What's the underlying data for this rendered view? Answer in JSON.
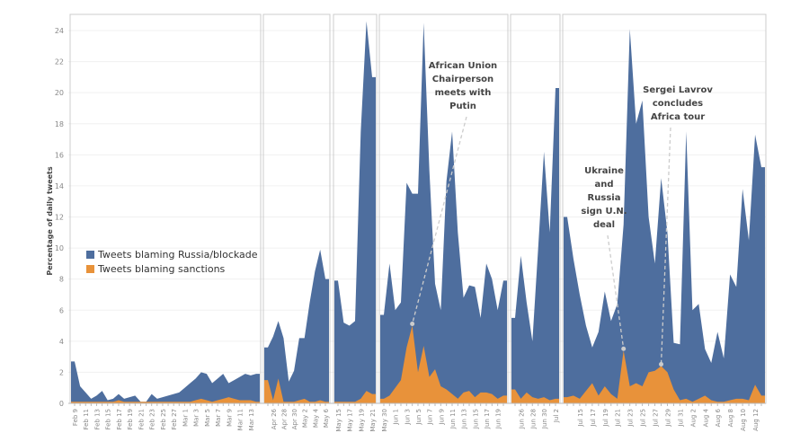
{
  "chart_data": {
    "type": "area",
    "ylabel": "Percentage of daily tweets",
    "ylim": [
      0,
      25
    ],
    "yticks": [
      0,
      2,
      4,
      6,
      8,
      10,
      12,
      14,
      16,
      18,
      20,
      22,
      24
    ],
    "grid": true,
    "legend_position": "left-middle",
    "series_meta": [
      {
        "name": "Tweets blaming Russia/blockade",
        "color": "#4e6e9e"
      },
      {
        "name": "Tweets blaming sanctions",
        "color": "#e8923a"
      }
    ],
    "panels": [
      {
        "dates": [
          "Feb 9",
          "Feb 10",
          "Feb 11",
          "Feb 12",
          "Feb 13",
          "Feb 14",
          "Feb 15",
          "Feb 16",
          "Feb 17",
          "Feb 18",
          "Feb 19",
          "Feb 20",
          "Feb 21",
          "Feb 22",
          "Feb 23",
          "Feb 24",
          "Feb 25",
          "Feb 26",
          "Feb 27",
          "Feb 28",
          "Mar 1",
          "Mar 2",
          "Mar 3",
          "Mar 4",
          "Mar 5",
          "Mar 6",
          "Mar 7",
          "Mar 8",
          "Mar 9",
          "Mar 10",
          "Mar 11",
          "Mar 12",
          "Mar 13",
          "Mar 14"
        ],
        "ticks": [
          "Feb 9",
          "Feb 11",
          "Feb 13",
          "Feb 15",
          "Feb 17",
          "Feb 19",
          "Feb 21",
          "Feb 23",
          "Feb 25",
          "Feb 27",
          "Mar 1",
          "Mar 3",
          "Mar 5",
          "Mar 7",
          "Mar 9",
          "Mar 11",
          "Mar 13"
        ],
        "russia": [
          2.7,
          1.1,
          0.7,
          0.3,
          0.5,
          0.8,
          0.2,
          0.3,
          0.6,
          0.3,
          0.4,
          0.5,
          0.1,
          0.1,
          0.6,
          0.3,
          0.4,
          0.5,
          0.6,
          0.7,
          1.0,
          1.3,
          1.6,
          2.0,
          1.9,
          1.3,
          1.6,
          1.9,
          1.3,
          1.5,
          1.7,
          1.9,
          1.8,
          1.9
        ],
        "sanctions": [
          0.1,
          0.1,
          0.1,
          0.1,
          0.1,
          0.1,
          0.1,
          0.1,
          0.2,
          0.1,
          0.1,
          0.1,
          0.1,
          0.1,
          0.1,
          0.1,
          0.1,
          0.1,
          0.1,
          0.1,
          0.1,
          0.1,
          0.2,
          0.3,
          0.2,
          0.1,
          0.2,
          0.3,
          0.4,
          0.3,
          0.2,
          0.2,
          0.2,
          0.1
        ]
      },
      {
        "dates": [
          "Apr 25",
          "Apr 26",
          "Apr 27",
          "Apr 28",
          "Apr 29",
          "Apr 30",
          "May 1",
          "May 2",
          "May 3",
          "May 4",
          "May 5",
          "May 6"
        ],
        "ticks": [
          "Apr 26",
          "Apr 28",
          "Apr 30",
          "May 2",
          "May 4",
          "May 6"
        ],
        "russia": [
          3.6,
          4.3,
          5.3,
          4.2,
          1.4,
          2.1,
          4.2,
          4.2,
          6.5,
          8.5,
          9.9,
          8.0
        ],
        "sanctions": [
          1.5,
          0.2,
          1.6,
          0.1,
          0.1,
          0.1,
          0.2,
          0.3,
          0.1,
          0.1,
          0.2,
          0.1
        ]
      },
      {
        "dates": [
          "May 15",
          "May 16",
          "May 17",
          "May 18",
          "May 19",
          "May 20",
          "May 21"
        ],
        "ticks": [
          "May 15",
          "May 17",
          "May 19",
          "May 21"
        ],
        "russia": [
          7.9,
          5.2,
          5.0,
          5.3,
          17.5,
          24.6,
          21.0
        ],
        "sanctions": [
          0.1,
          0.1,
          0.1,
          0.1,
          0.3,
          0.8,
          0.6
        ]
      },
      {
        "dates": [
          "May 30",
          "May 31",
          "Jun 1",
          "Jun 2",
          "Jun 3",
          "Jun 4",
          "Jun 5",
          "Jun 6",
          "Jun 7",
          "Jun 8",
          "Jun 9",
          "Jun 10",
          "Jun 11",
          "Jun 12",
          "Jun 13",
          "Jun 14",
          "Jun 15",
          "Jun 16",
          "Jun 17",
          "Jun 18",
          "Jun 19",
          "Jun 20"
        ],
        "ticks": [
          "May 30",
          "Jun 1",
          "Jun 3",
          "Jun 5",
          "Jun 7",
          "Jun 9",
          "Jun 11",
          "Jun 13",
          "Jun 15",
          "Jun 17",
          "Jun 19"
        ],
        "russia": [
          5.7,
          9.0,
          6.0,
          6.5,
          14.2,
          13.5,
          13.5,
          24.5,
          15.0,
          7.7,
          6.0,
          14.3,
          17.5,
          11.0,
          6.8,
          7.6,
          7.5,
          5.5,
          9.0,
          8.0,
          6.0,
          7.9
        ],
        "sanctions": [
          0.3,
          0.5,
          1.0,
          1.5,
          3.6,
          5.0,
          2.0,
          3.7,
          1.7,
          2.2,
          1.1,
          0.9,
          0.6,
          0.3,
          0.7,
          0.8,
          0.4,
          0.7,
          0.7,
          0.6,
          0.3,
          0.5
        ]
      },
      {
        "dates": [
          "Jun 25",
          "Jun 26",
          "Jun 27",
          "Jun 28",
          "Jun 29",
          "Jun 30",
          "Jul 1",
          "Jul 2"
        ],
        "ticks": [
          "Jun 26",
          "Jun 28",
          "Jun 30",
          "Jul 2"
        ],
        "russia": [
          5.5,
          9.5,
          6.5,
          4.0,
          10.0,
          16.2,
          11.0,
          20.3
        ],
        "sanctions": [
          0.9,
          0.3,
          0.7,
          0.4,
          0.3,
          0.4,
          0.2,
          0.3
        ]
      },
      {
        "dates": [
          "Jul 13",
          "Jul 14",
          "Jul 15",
          "Jul 16",
          "Jul 17",
          "Jul 18",
          "Jul 19",
          "Jul 20",
          "Jul 21",
          "Jul 22",
          "Jul 23",
          "Jul 24",
          "Jul 25",
          "Jul 26",
          "Jul 27",
          "Jul 28",
          "Jul 29",
          "Jul 30",
          "Jul 31",
          "Aug 1",
          "Aug 2",
          "Aug 3",
          "Aug 4",
          "Aug 5",
          "Aug 6",
          "Aug 7",
          "Aug 8",
          "Aug 9",
          "Aug 10",
          "Aug 11",
          "Aug 12",
          "Aug 13"
        ],
        "ticks": [
          "Jul 15",
          "Jul 17",
          "Jul 19",
          "Jul 21",
          "Jul 23",
          "Jul 25",
          "Jul 27",
          "Jul 29",
          "Jul 31",
          "Aug 2",
          "Aug 4",
          "Aug 6",
          "Aug 8",
          "Aug 10",
          "Aug 12"
        ],
        "russia": [
          12.0,
          9.3,
          7.0,
          5.0,
          3.6,
          4.6,
          7.2,
          5.3,
          6.4,
          11.5,
          24.1,
          18.0,
          19.5,
          12.0,
          9.0,
          14.5,
          11.0,
          3.9,
          3.8,
          17.5,
          6.0,
          6.4,
          3.5,
          2.6,
          4.6,
          2.9,
          8.3,
          7.5,
          13.8,
          10.5,
          17.3,
          15.2
        ],
        "sanctions": [
          0.4,
          0.5,
          0.3,
          0.8,
          1.3,
          0.5,
          1.1,
          0.6,
          0.3,
          3.4,
          1.1,
          1.3,
          1.1,
          2.0,
          2.1,
          2.4,
          2.0,
          0.9,
          0.2,
          0.3,
          0.1,
          0.3,
          0.5,
          0.2,
          0.1,
          0.1,
          0.2,
          0.3,
          0.3,
          0.2,
          1.2,
          0.5
        ]
      }
    ],
    "annotations": [
      {
        "lines": [
          "African Union",
          "Chairperson",
          "meets with",
          "Putin"
        ],
        "date": "Jun 4"
      },
      {
        "lines": [
          "Ukraine",
          "and",
          "Russia",
          "sign U.N.",
          "deal"
        ],
        "date": "Jul 22"
      },
      {
        "lines": [
          "Sergei Lavrov",
          "concludes",
          "Africa tour"
        ],
        "date": "Jul 28"
      }
    ]
  }
}
